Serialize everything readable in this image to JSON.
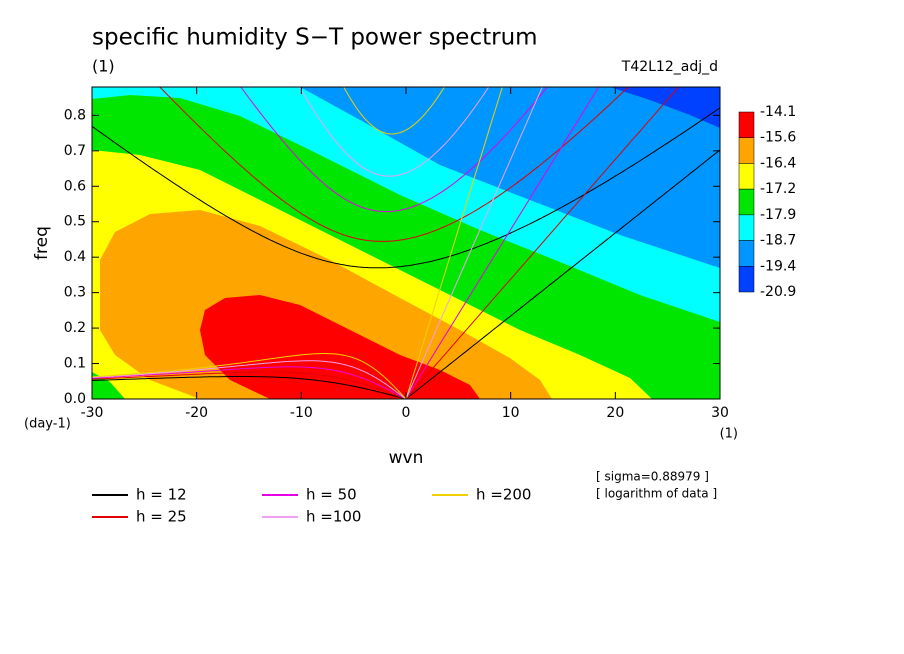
{
  "chart_data": {
    "type": "spectrum",
    "title": "specific humidity S−T power spectrum",
    "subtitle": "(1)",
    "run_label": "T42L12_adj_d",
    "x_label": "wvn",
    "y_label": "freq",
    "y_unit": "(day-1)",
    "x_unit": "(1)",
    "notes": [
      "[ sigma=0.88979 ]",
      "[ logarithm of data ]"
    ],
    "xlim": [
      -30,
      30
    ],
    "xticks": [
      -30,
      -20,
      -10,
      0,
      10,
      20,
      30
    ],
    "ylim": [
      0,
      0.88
    ],
    "yticks": [
      {
        "value": 0,
        "label": "0.0"
      },
      0.1,
      0.2,
      0.3,
      0.4,
      0.5,
      0.6,
      0.7,
      0.8
    ],
    "colorbar": {
      "levels": [
        -14.1,
        -15.6,
        -16.4,
        -17.2,
        -17.9,
        -18.7,
        -19.4,
        -20.9
      ],
      "colors": [
        "#ff0000",
        "#ffa500",
        "#ffff00",
        "#00e600",
        "#00ffff",
        "#0096ff",
        "#0040ff"
      ]
    },
    "series": [
      {
        "name": "h = 12",
        "color": "#000000",
        "h": 12
      },
      {
        "name": "h = 25",
        "color": "#e00000",
        "h": 25
      },
      {
        "name": "h = 50",
        "color": "#e600e6",
        "h": 50
      },
      {
        "name": "h =100",
        "color": "#f0a0f0",
        "h": 100
      },
      {
        "name": "h =200",
        "color": "#f0d000",
        "h": 200
      }
    ]
  }
}
